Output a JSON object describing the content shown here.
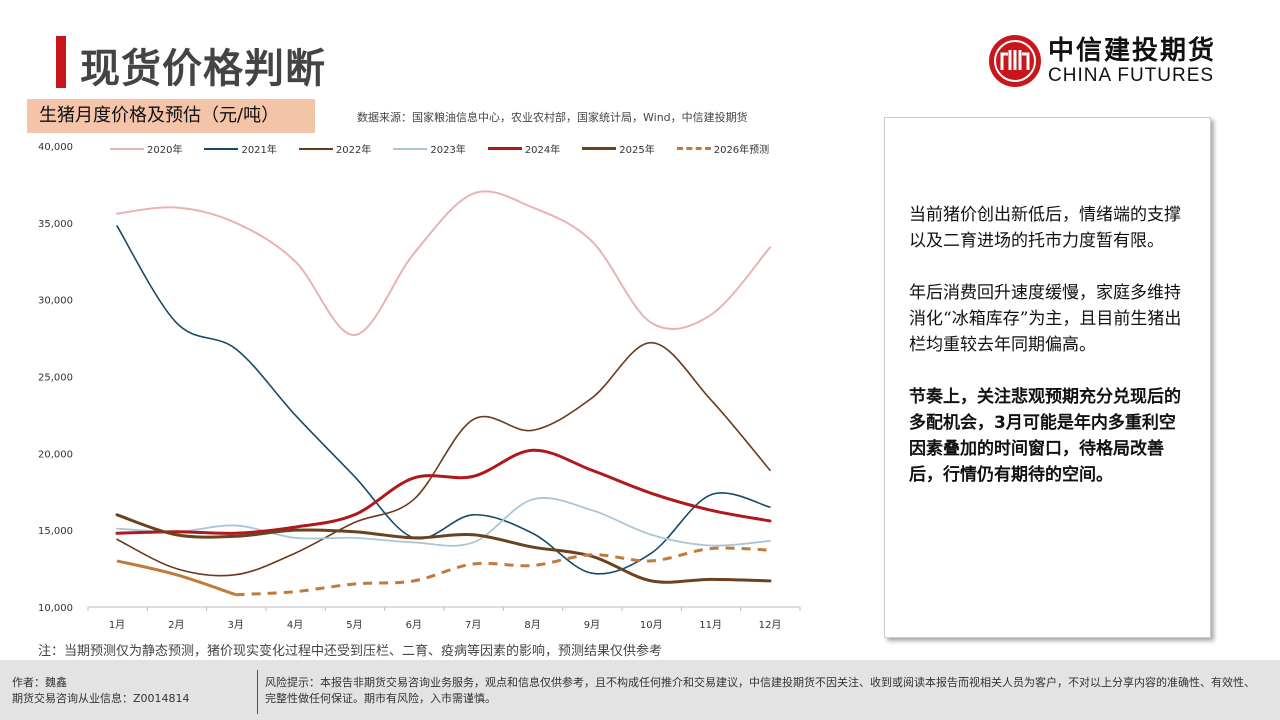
{
  "header": {
    "title": "现货价格判断",
    "logo_cn": "中信建投期货",
    "logo_en": "CHINA FUTURES"
  },
  "chart_header": {
    "subtitle": "生猪月度价格及预估（元/吨）",
    "source": "数据来源：国家粮油信息中心，农业农村部，国家统计局，Wind，中信建投期货"
  },
  "chart_data": {
    "type": "line",
    "title": "生猪月度价格及预估（元/吨）",
    "categories": [
      "1月",
      "2月",
      "3月",
      "4月",
      "5月",
      "6月",
      "7月",
      "8月",
      "9月",
      "10月",
      "11月",
      "12月"
    ],
    "ylim": [
      10000,
      40000
    ],
    "yticks": [
      "10,000",
      "15,000",
      "20,000",
      "25,000",
      "30,000",
      "35,000",
      "40,000"
    ],
    "legend_position": "top",
    "series": [
      {
        "name": "2020年",
        "color": "#e9b3b3",
        "width": 2,
        "values": [
          35600,
          36000,
          35000,
          32500,
          27700,
          33000,
          36900,
          36000,
          33800,
          28500,
          29000,
          33400
        ]
      },
      {
        "name": "2021年",
        "color": "#174a68",
        "width": 1.6,
        "values": [
          34800,
          28500,
          26800,
          22500,
          18500,
          14500,
          16000,
          14800,
          12200,
          13500,
          17300,
          16500
        ]
      },
      {
        "name": "2022年",
        "color": "#6a3a1c",
        "width": 1.6,
        "values": [
          14400,
          12500,
          12100,
          13500,
          15500,
          17000,
          22200,
          21500,
          23600,
          27200,
          23500,
          18900
        ]
      },
      {
        "name": "2023年",
        "color": "#a9c6d6",
        "width": 1.8,
        "values": [
          15100,
          14900,
          15300,
          14500,
          14500,
          14200,
          14200,
          17000,
          16300,
          14700,
          14000,
          14300
        ]
      },
      {
        "name": "2024年",
        "color": "#b0181c",
        "width": 3,
        "values": [
          14800,
          14900,
          14800,
          15200,
          16000,
          18400,
          18500,
          20200,
          18900,
          17400,
          16300,
          15600
        ]
      },
      {
        "name": "2025年",
        "color": "#6b4220",
        "width": 3,
        "values": [
          16000,
          14700,
          14600,
          15000,
          14900,
          14500,
          14700,
          13900,
          13300,
          11700,
          11800,
          11700
        ]
      },
      {
        "name": "2026年预测",
        "color": "#c07a3a",
        "width": 3,
        "dashed": true,
        "actual_months": 3,
        "values": [
          13000,
          12100,
          10800,
          11000,
          11500,
          11700,
          12800,
          12700,
          13400,
          13000,
          13800,
          13700
        ]
      }
    ]
  },
  "note": "注：当期预测仅为静态预测，猪价现实变化过程中还受到压栏、二育、疫病等因素的影响，预测结果仅供参考",
  "commentary": [
    "当前猪价创出新低后，情绪端的支撑以及二育进场的托市力度暂有限。",
    "年后消费回升速度缓慢，家庭多维持消化“冰箱库存”为主，且目前生猪出栏均重较去年同期偏高。",
    "节奏上，关注悲观预期充分兑现后的多配机会，3月可能是年内多重利空因素叠加的时间窗口，待格局改善后，行情仍有期待的空间。"
  ],
  "footer": {
    "author": "作者：魏鑫",
    "license": "期货交易咨询从业信息：Z0014814",
    "risk": "风险提示：本报告非期货交易咨询业务服务，观点和信息仅供参考，且不构成任何推介和交易建议，中信建投期货不因关注、收到或阅读本报告而视相关人员为客户，不对以上分享内容的准确性、有效性、完整性做任何保证。期市有风险，入市需谨慎。"
  }
}
